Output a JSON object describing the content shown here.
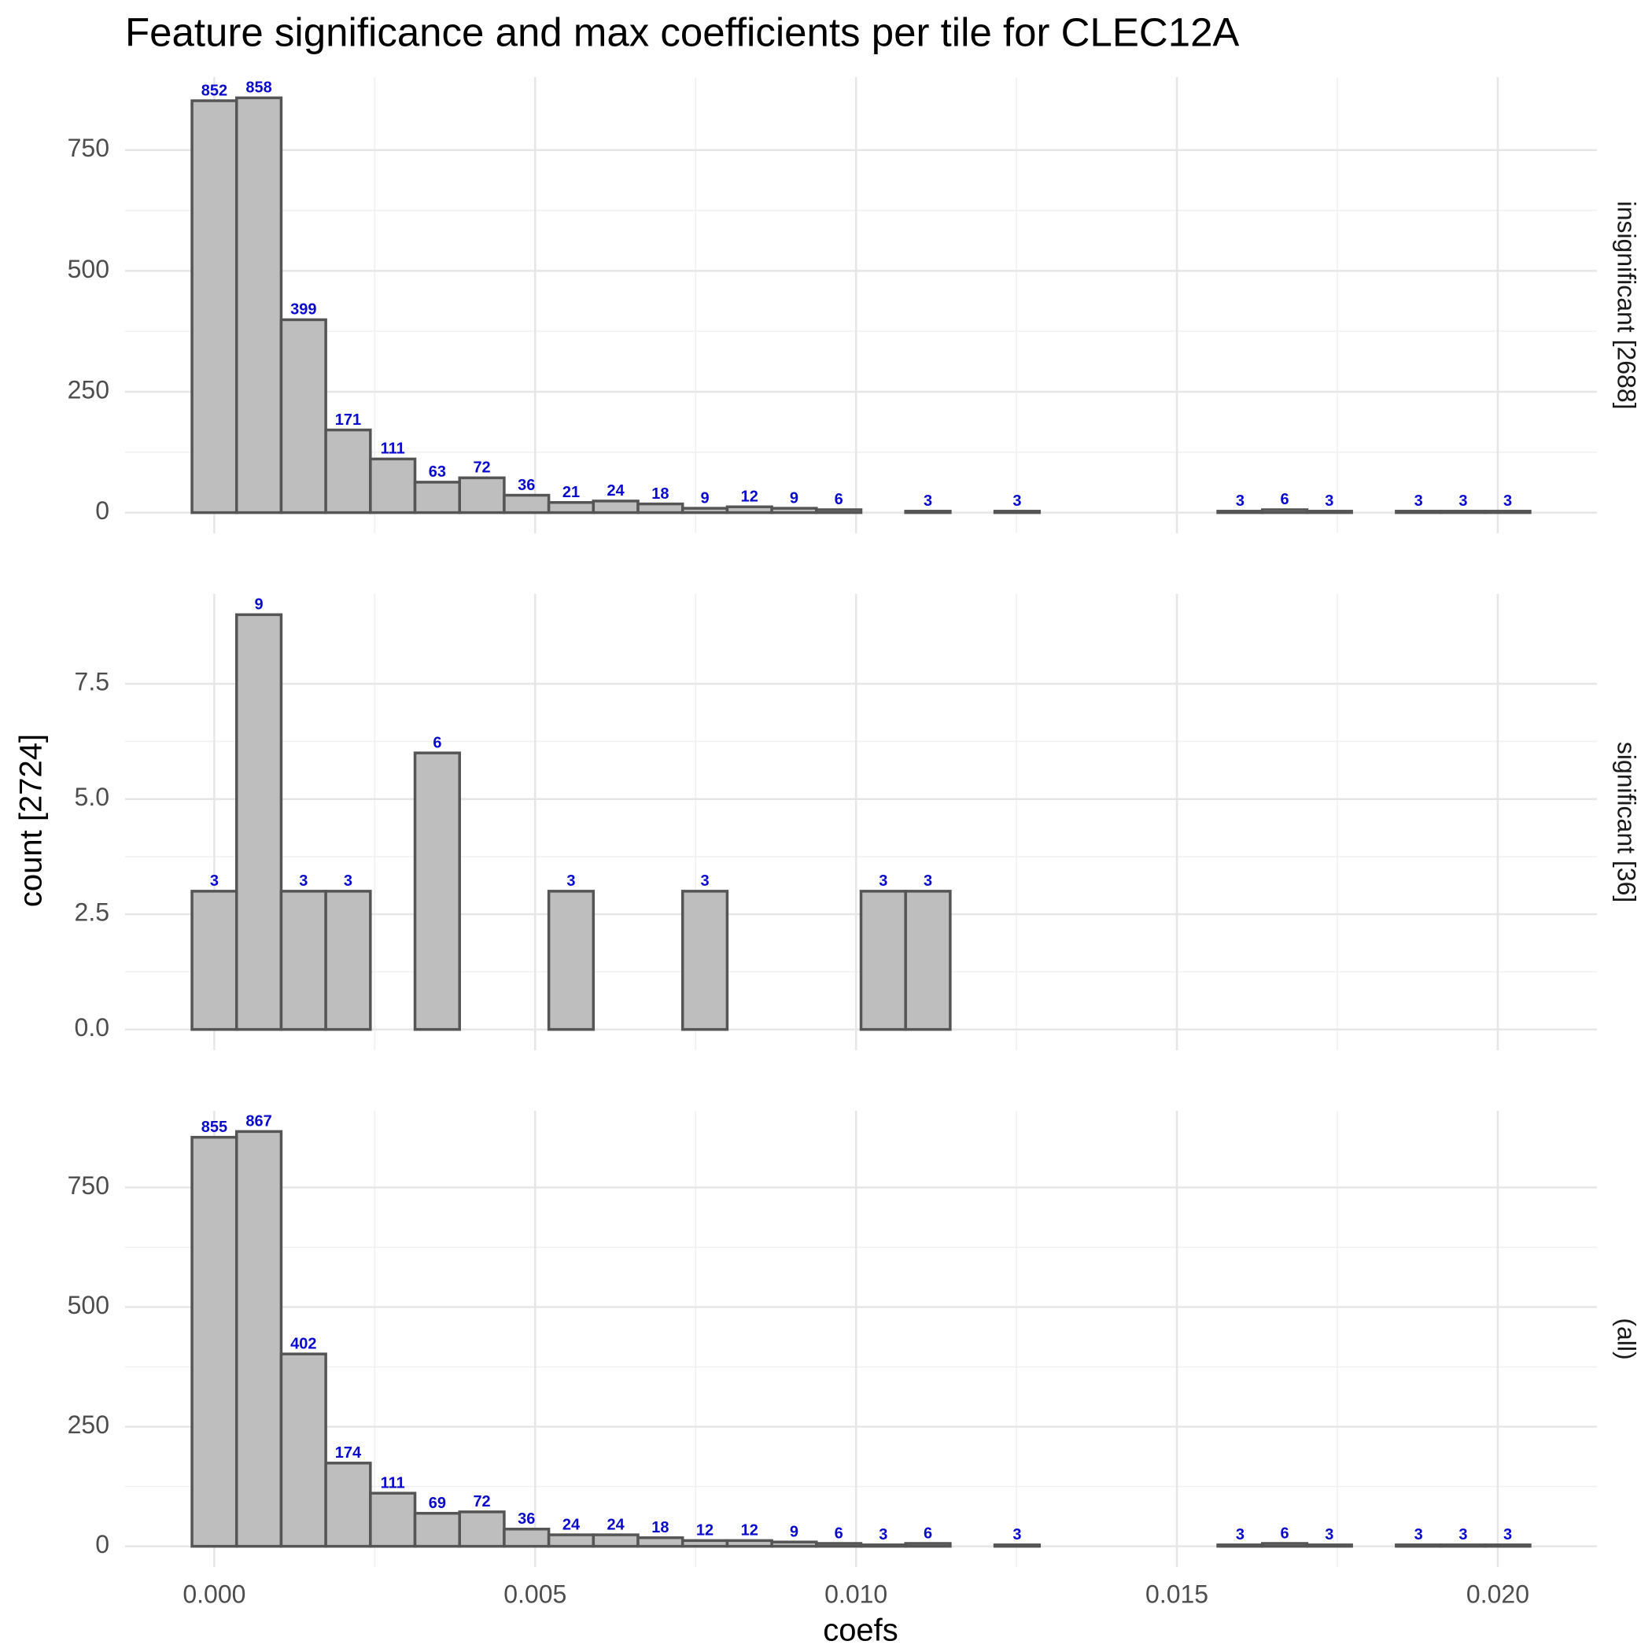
{
  "chart_data": {
    "type": "histogram",
    "title": "Feature significance and max coefficients per tile for CLEC12A",
    "xlabel": "coefs",
    "ylabel": "count [2724]",
    "color": "#bebebe",
    "edge_color": "#555555",
    "label_color": "#0a0acd",
    "grid": true,
    "bins": [
      -0.0003475,
      0.0003475,
      0.0010425,
      0.0017375,
      0.0024325,
      0.0031275,
      0.0038225,
      0.0045175,
      0.0052125,
      0.0059075,
      0.0066025,
      0.0072975,
      0.0079925,
      0.0086875,
      0.0093825,
      0.0100775,
      0.0107725,
      0.0114675,
      0.0121625,
      0.0128575,
      0.0135525,
      0.0142475,
      0.0149425,
      0.0156375,
      0.0163325,
      0.0170275,
      0.0177225,
      0.0184175,
      0.0191125,
      0.0198075,
      0.0205025
    ],
    "xlim": [
      -0.00139,
      0.021545
    ],
    "xticks": [
      {
        "value": 0,
        "label": "0.000"
      },
      {
        "value": 0.005,
        "label": "0.005"
      },
      {
        "value": 0.01,
        "label": "0.010"
      },
      {
        "value": 0.015,
        "label": "0.015"
      },
      {
        "value": 0.02,
        "label": "0.020"
      }
    ],
    "panels": [
      {
        "facet": "insignificant [2688]",
        "values": [
          852,
          858,
          399,
          171,
          111,
          63,
          72,
          36,
          21,
          24,
          18,
          9,
          12,
          9,
          6,
          0,
          3,
          0,
          3,
          0,
          0,
          0,
          0,
          3,
          6,
          3,
          0,
          3,
          3,
          3
        ],
        "ylim": [
          -42.9,
          900.9
        ],
        "yticks": [
          0,
          250,
          500,
          750
        ]
      },
      {
        "facet": "significant [36]",
        "values": [
          3,
          9,
          3,
          3,
          0,
          6,
          0,
          0,
          3,
          0,
          0,
          3,
          0,
          0,
          0,
          3,
          3,
          0,
          0,
          0,
          0,
          0,
          0,
          0,
          0,
          0,
          0,
          0,
          0,
          0
        ],
        "ylim": [
          -0.45,
          9.45
        ],
        "yticks": [
          {
            "value": 0,
            "label": "0.0"
          },
          {
            "value": 2.5,
            "label": "2.5"
          },
          {
            "value": 5,
            "label": "5.0"
          },
          {
            "value": 7.5,
            "label": "7.5"
          }
        ]
      },
      {
        "facet": "(all)",
        "values": [
          855,
          867,
          402,
          174,
          111,
          69,
          72,
          36,
          24,
          24,
          18,
          12,
          12,
          9,
          6,
          3,
          6,
          0,
          3,
          0,
          0,
          0,
          0,
          3,
          6,
          3,
          0,
          3,
          3,
          3
        ],
        "ylim": [
          -43.35,
          910.35
        ],
        "yticks": [
          0,
          250,
          500,
          750
        ]
      }
    ]
  }
}
